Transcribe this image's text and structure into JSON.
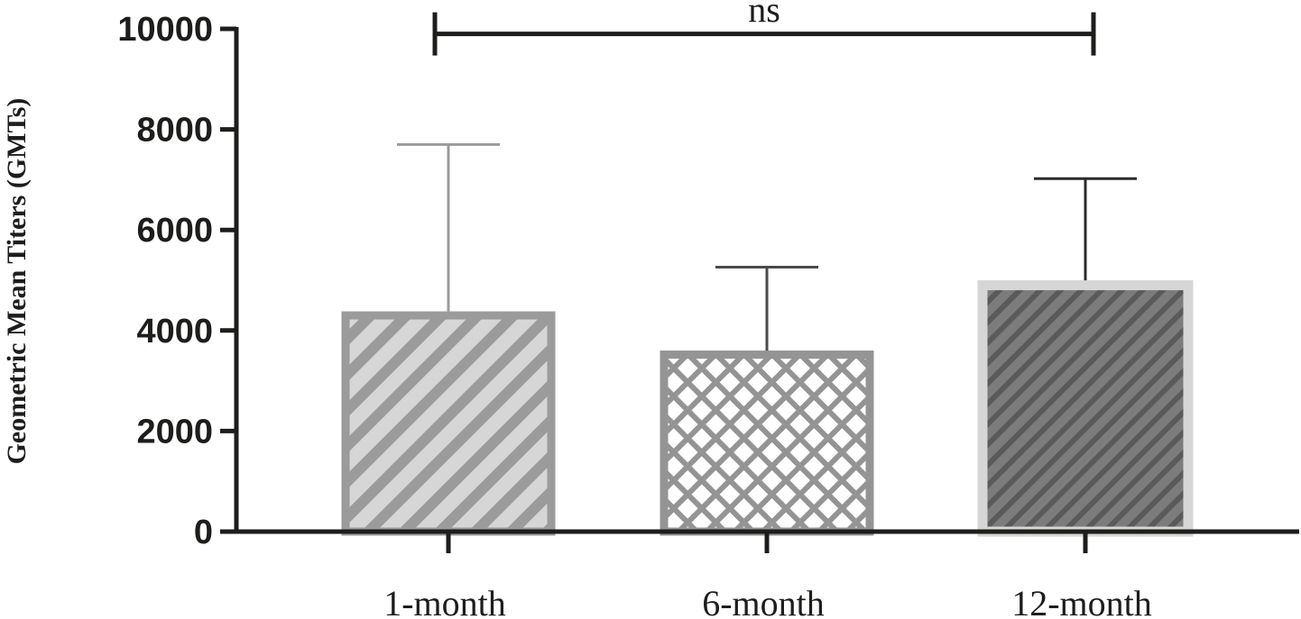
{
  "chart_data": {
    "type": "bar",
    "categories": [
      "1-month",
      "6-month",
      "12-month"
    ],
    "values": [
      4300,
      3520,
      4900
    ],
    "error_upper": [
      7700,
      5260,
      7020
    ],
    "ylabel": "Geometric Mean Titers (GMTs)",
    "xlabel": "",
    "ylim": [
      0,
      10000
    ],
    "yticks": [
      0,
      2000,
      4000,
      6000,
      8000,
      10000
    ],
    "ytick_labels": [
      "0",
      "2000",
      "4000",
      "6000",
      "8000",
      "10000"
    ],
    "grid": false,
    "legend": "none",
    "annotation": {
      "text": "ns",
      "from": "1-month",
      "to": "12-month",
      "level": 9900
    },
    "bar_styles": [
      {
        "pattern": "diagonal-stripes",
        "fill": "#d6d6d6",
        "stripe": "#9b9b9b",
        "edge": "#9b9b9b"
      },
      {
        "pattern": "diamond-lattice",
        "fill": "#ffffff",
        "stripe": "#949494",
        "edge": "#949494"
      },
      {
        "pattern": "fine-diagonal-stripes",
        "fill": "#7c7c7c",
        "stripe": "#5a5a5a",
        "edge": "#d6d6d6"
      }
    ],
    "error_colors": [
      "#9b9b9b",
      "#4a4a4a",
      "#2b2b2b"
    ]
  }
}
